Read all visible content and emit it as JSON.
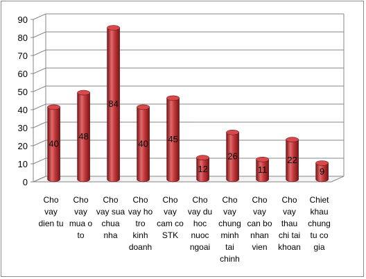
{
  "chart_data": {
    "type": "bar",
    "style": "3d-cylinder",
    "categories": [
      [
        "Cho",
        "vay",
        "dien tu"
      ],
      [
        "Cho",
        "vay",
        "mua o",
        "to"
      ],
      [
        "Cho",
        "vay sua",
        "chua",
        "nha"
      ],
      [
        "Cho",
        "vay ho",
        "tro",
        "kinh",
        "doanh"
      ],
      [
        "Cho",
        "vay",
        "cam co",
        "STK"
      ],
      [
        "Cho",
        "vay du",
        "hoc",
        "nuoc",
        "ngoai"
      ],
      [
        "Cho",
        "vay",
        "chung",
        "minh",
        "tai",
        "chinh"
      ],
      [
        "Cho",
        "vay",
        "can bo",
        "nhan",
        "vien"
      ],
      [
        "Cho",
        "vay",
        "thau",
        "chi tai",
        "khoan"
      ],
      [
        "Chiet",
        "khau",
        "chung",
        "tu co",
        "gia"
      ]
    ],
    "values": [
      40,
      48,
      84,
      40,
      45,
      12,
      26,
      11,
      22,
      9
    ],
    "data_labels": [
      "40",
      "48",
      "84",
      "40",
      "45",
      "12",
      "26",
      "11",
      "22",
      "9"
    ],
    "ylim": [
      0,
      90
    ],
    "yticks": [
      0,
      10,
      20,
      30,
      40,
      50,
      60,
      70,
      80,
      90
    ],
    "grid": true,
    "legend": "none",
    "colors": {
      "bar_dark": "#7a1416",
      "bar_mid": "#c0393b",
      "bar_light": "#e06a6c",
      "bar_top": "#d9494b",
      "grid": "#868686",
      "wall": "#ffffff"
    }
  }
}
